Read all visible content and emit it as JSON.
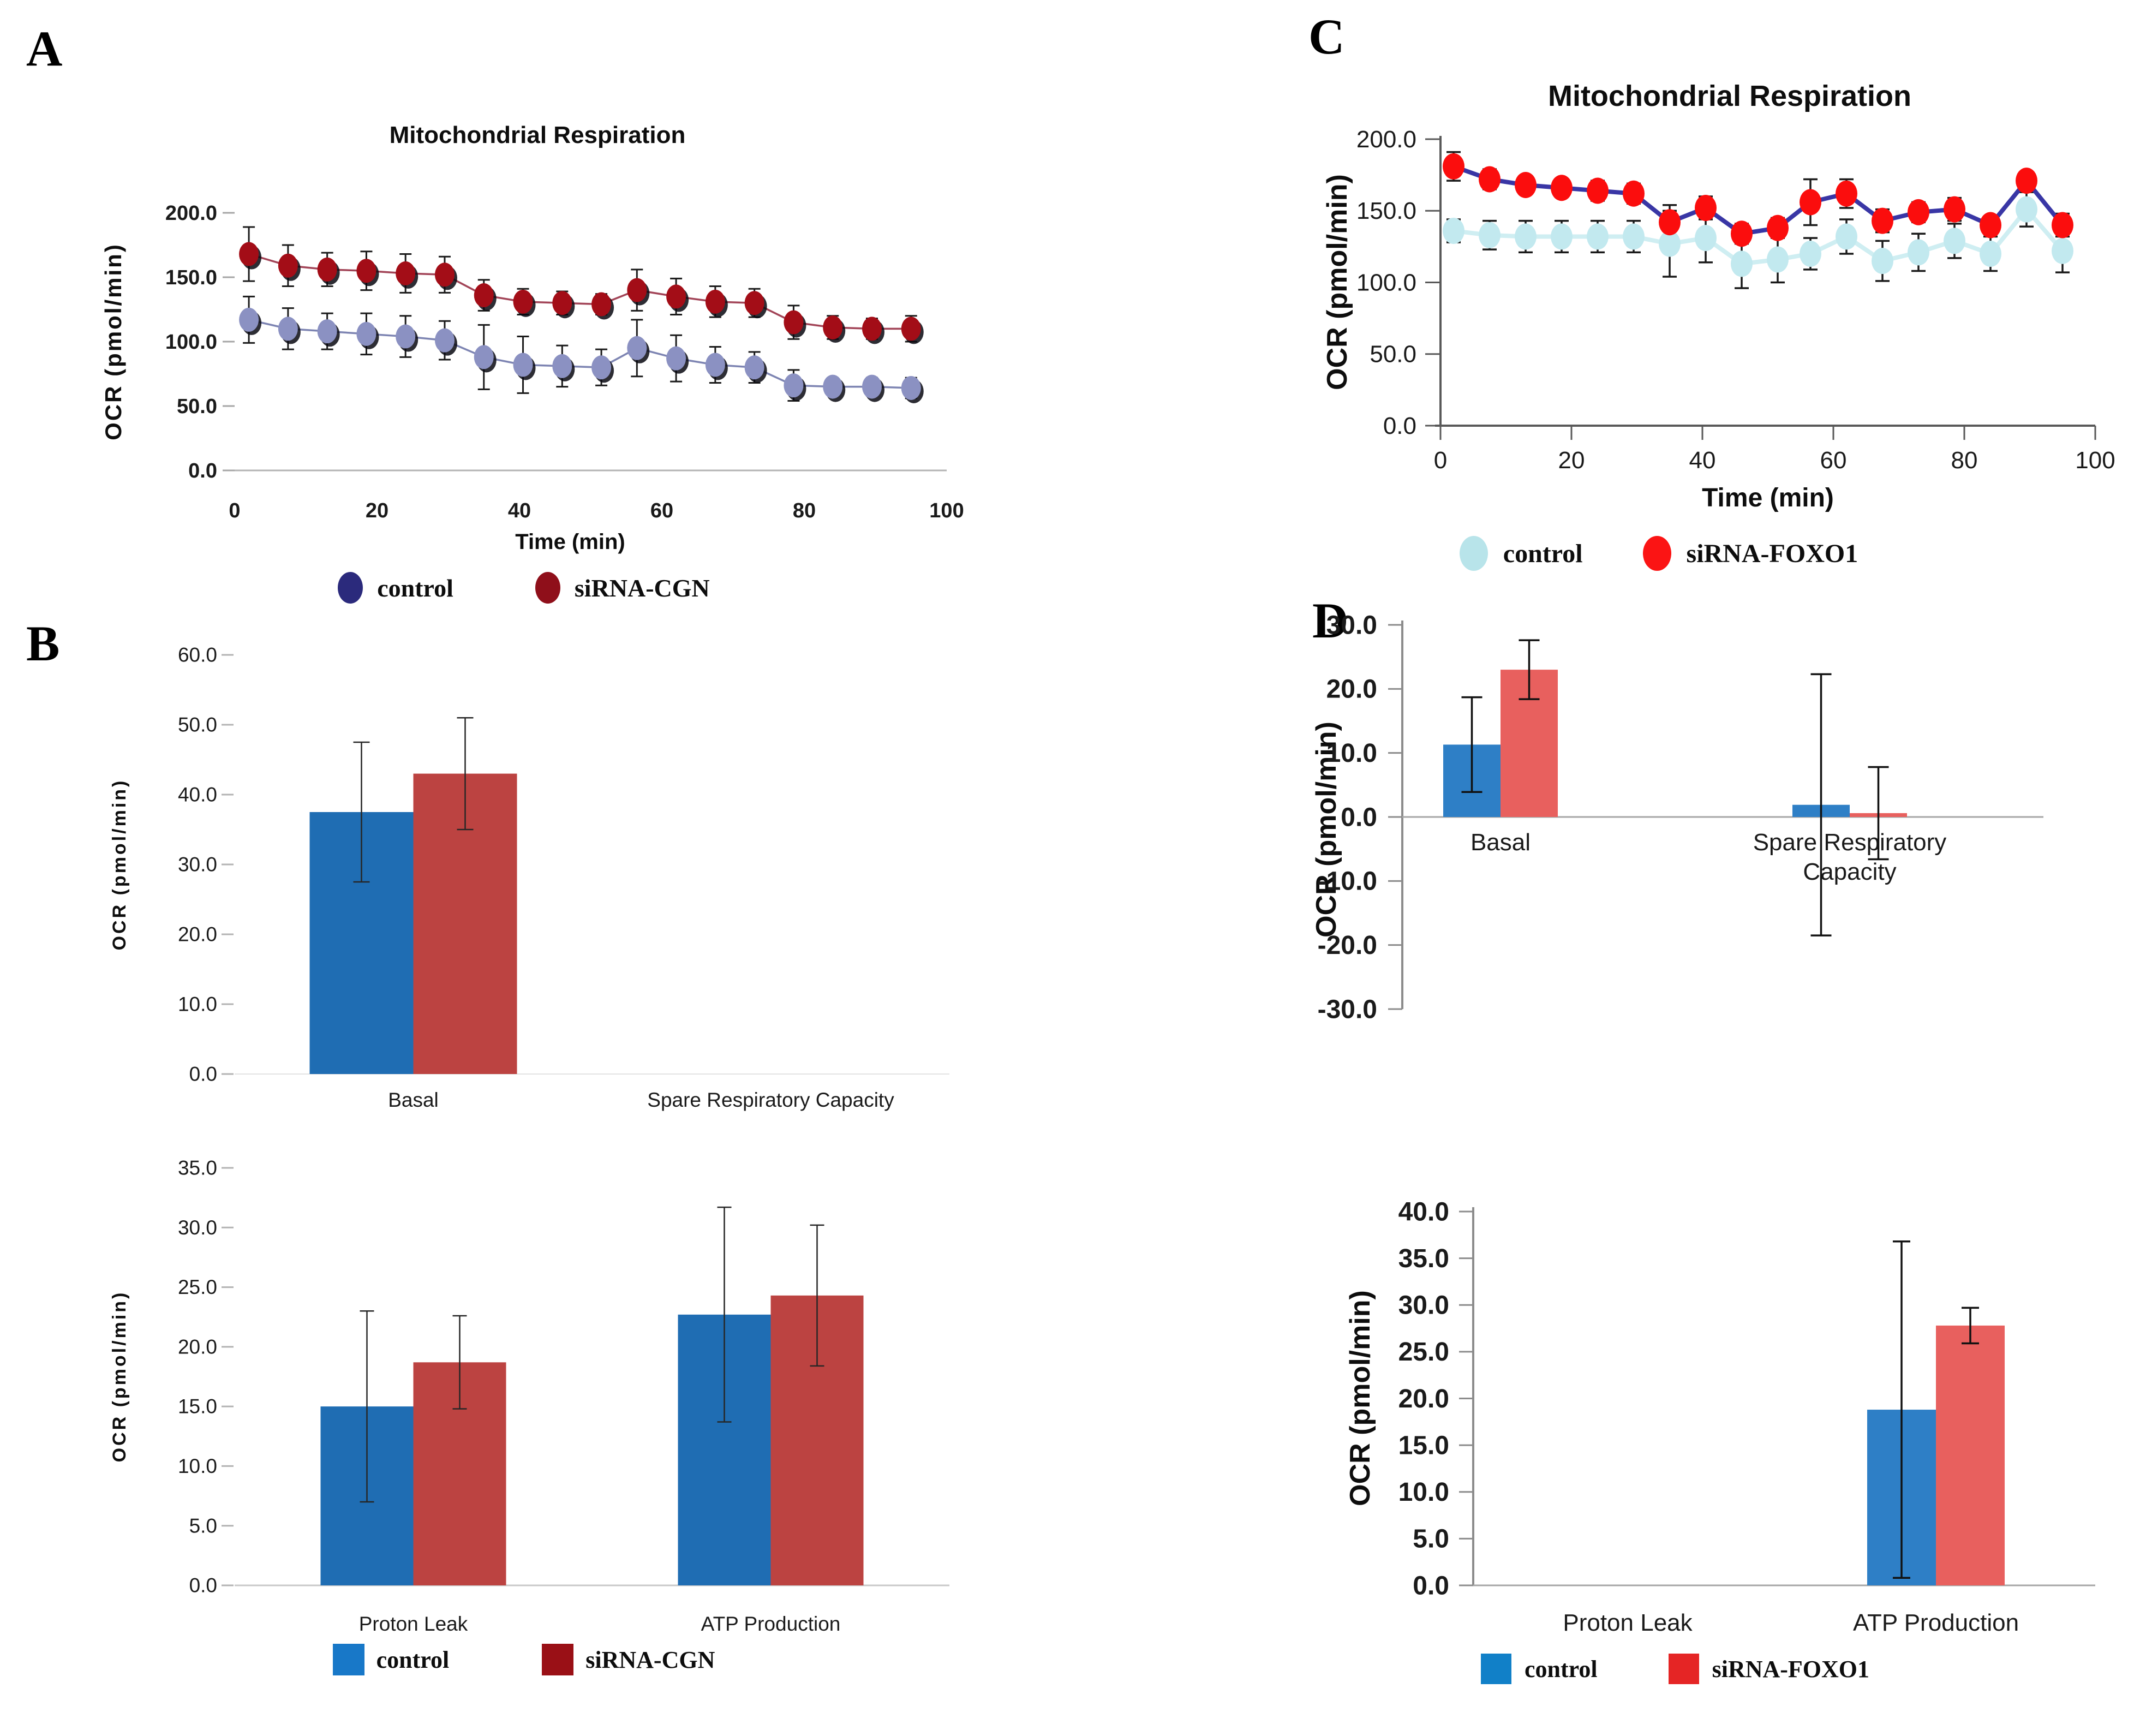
{
  "panels": {
    "a": "A",
    "b": "B",
    "c": "C",
    "d": "D"
  },
  "chart_data": [
    {
      "id": "panel-a-line",
      "type": "line",
      "panel": "A",
      "title": "Mitochondrial Respiration",
      "xlabel": "Time (min)",
      "ylabel": "OCR (pmol/min)",
      "xlim": [
        0,
        100
      ],
      "xstep": 20,
      "ylim": [
        0,
        200
      ],
      "ystep": 50,
      "grid": false,
      "legend_position": "bottom",
      "x": [
        2,
        7.5,
        13,
        18.5,
        24,
        29.5,
        35,
        40.5,
        46,
        51.5,
        56.5,
        62,
        67.5,
        73,
        78.5,
        84,
        89.5,
        95
      ],
      "series": [
        {
          "name": "control",
          "values": [
            117,
            110,
            108,
            106,
            104,
            101,
            88,
            82,
            81,
            80,
            95,
            87,
            82,
            80,
            66,
            65,
            65,
            64
          ],
          "errors": [
            18,
            16,
            14,
            16,
            16,
            15,
            25,
            22,
            16,
            14,
            22,
            18,
            14,
            12,
            12,
            6,
            7,
            8
          ],
          "marker_color": "#8b91c2",
          "line_color": "#7d84b2",
          "legend_color": "#2b2a7c"
        },
        {
          "name": "siRNA-CGN",
          "values": [
            168,
            159,
            156,
            155,
            153,
            152,
            136,
            131,
            130,
            129,
            140,
            135,
            131,
            130,
            115,
            111,
            110,
            110
          ],
          "errors": [
            21,
            16,
            13,
            15,
            15,
            14,
            12,
            10,
            9,
            8,
            16,
            14,
            12,
            11,
            13,
            9,
            8,
            10
          ],
          "marker_color": "#a30d17",
          "line_color": "#a24457",
          "legend_color": "#8f0f1a"
        }
      ]
    },
    {
      "id": "panel-b-basal",
      "type": "bar",
      "panel": "B",
      "ylabel": "OCR (pmol/min)",
      "ylim": [
        0,
        60
      ],
      "ystep": 10,
      "grid": false,
      "categories": [
        "Basal",
        "Spare Respiratory Capacity"
      ],
      "series": [
        {
          "name": "control",
          "color": "#1f6db3",
          "values": [
            37.5,
            0
          ],
          "errors": [
            10,
            0
          ],
          "legend_color": "#1878c8"
        },
        {
          "name": "siRNA-CGN",
          "color": "#bc4341",
          "values": [
            43,
            0
          ],
          "errors": [
            8,
            0
          ],
          "legend_color": "#9a1016"
        }
      ]
    },
    {
      "id": "panel-b-leak-atp",
      "type": "bar",
      "panel": "B",
      "ylabel": "OCR (pmol/min)",
      "ylim": [
        0,
        35
      ],
      "ystep": 5,
      "grid": false,
      "legend_position": "bottom",
      "categories": [
        "Proton Leak",
        "ATP Production"
      ],
      "series": [
        {
          "name": "control",
          "color": "#1f6db3",
          "values": [
            15,
            22.7
          ],
          "errors": [
            8,
            9
          ],
          "legend_color": "#1878c8"
        },
        {
          "name": "siRNA-CGN",
          "color": "#bc4341",
          "values": [
            18.7,
            24.3
          ],
          "errors": [
            3.9,
            5.9
          ],
          "legend_color": "#9a1016"
        }
      ]
    },
    {
      "id": "panel-c-line",
      "type": "line",
      "panel": "C",
      "title": "Mitochondrial Respiration",
      "xlabel": "Time (min)",
      "ylabel": "OCR (pmol/min)",
      "xlim": [
        0,
        100
      ],
      "xstep": 20,
      "ylim": [
        0,
        200
      ],
      "ystep": 50,
      "grid": false,
      "legend_position": "bottom",
      "x": [
        2,
        7.5,
        13,
        18.5,
        24,
        29.5,
        35,
        40.5,
        46,
        51.5,
        56.5,
        62,
        67.5,
        73,
        78.5,
        84,
        89.5,
        95
      ],
      "series": [
        {
          "name": "control",
          "values": [
            136,
            133,
            132,
            132,
            132,
            132,
            127,
            131,
            113,
            116,
            120,
            132,
            115,
            121,
            129,
            120,
            151,
            122
          ],
          "errors": [
            8,
            10,
            11,
            11,
            11,
            11,
            23,
            17,
            17,
            16,
            11,
            12,
            14,
            13,
            12,
            12,
            12,
            15
          ],
          "marker_color": "#c2e9ef",
          "line_color": "#cfeef2",
          "legend_color": "#b8e4ea"
        },
        {
          "name": "siRNA-FOXO1",
          "values": [
            181,
            172,
            168,
            166,
            164,
            162,
            142,
            152,
            134,
            138,
            156,
            162,
            143,
            149,
            151,
            140,
            171,
            140
          ],
          "errors": [
            10,
            7,
            6,
            6,
            7,
            7,
            12,
            8,
            7,
            7,
            16,
            10,
            8,
            7,
            8,
            6,
            6,
            8
          ],
          "marker_color": "#fb0d0d",
          "line_color": "#3936a5",
          "legend_color": "#fb1414"
        }
      ]
    },
    {
      "id": "panel-d-basal",
      "type": "bar",
      "panel": "D",
      "ylabel": "OCR (pmol/min)",
      "ylim": [
        -30,
        30
      ],
      "ystep": 10,
      "grid": false,
      "categories": [
        "Basal",
        "Spare Respiratory\nCapacity"
      ],
      "series": [
        {
          "name": "control",
          "color": "#2e7fc6",
          "values": [
            11.3,
            1.9
          ],
          "errors": [
            7.4,
            20.4
          ],
          "legend_color": "#1180c8"
        },
        {
          "name": "siRNA-FOXO1",
          "color": "#e8605e",
          "values": [
            23,
            0.6
          ],
          "errors": [
            4.6,
            7.2
          ],
          "legend_color": "#e52525"
        }
      ]
    },
    {
      "id": "panel-d-leak-atp",
      "type": "bar",
      "panel": "D",
      "ylabel": "OCR (pmol/min)",
      "ylim": [
        0,
        40
      ],
      "ystep": 5,
      "grid": false,
      "legend_position": "bottom",
      "categories": [
        "Proton Leak",
        "ATP Production"
      ],
      "series": [
        {
          "name": "control",
          "color": "#2e7fc6",
          "values": [
            0,
            18.8
          ],
          "errors": [
            0,
            18
          ],
          "legend_color": "#1180c8"
        },
        {
          "name": "siRNA-FOXO1",
          "color": "#e8605e",
          "values": [
            0,
            27.8
          ],
          "errors": [
            0,
            1.9
          ],
          "legend_color": "#e52525"
        }
      ]
    }
  ]
}
